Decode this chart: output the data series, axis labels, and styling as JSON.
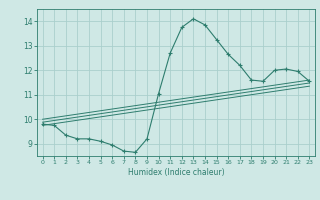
{
  "title": "",
  "xlabel": "Humidex (Indice chaleur)",
  "bg_color": "#cfe8e5",
  "line_color": "#2e7d6e",
  "grid_color": "#aacfcc",
  "xlim": [
    -0.5,
    23.5
  ],
  "ylim": [
    8.5,
    14.5
  ],
  "xticks": [
    0,
    1,
    2,
    3,
    4,
    5,
    6,
    7,
    8,
    9,
    10,
    11,
    12,
    13,
    14,
    15,
    16,
    17,
    18,
    19,
    20,
    21,
    22,
    23
  ],
  "yticks": [
    9,
    10,
    11,
    12,
    13,
    14
  ],
  "main_line": [
    [
      0,
      9.8
    ],
    [
      1,
      9.75
    ],
    [
      2,
      9.35
    ],
    [
      3,
      9.2
    ],
    [
      4,
      9.2
    ],
    [
      5,
      9.1
    ],
    [
      6,
      8.95
    ],
    [
      7,
      8.7
    ],
    [
      8,
      8.65
    ],
    [
      9,
      9.2
    ],
    [
      10,
      11.05
    ],
    [
      11,
      12.7
    ],
    [
      12,
      13.75
    ],
    [
      13,
      14.1
    ],
    [
      14,
      13.85
    ],
    [
      15,
      13.25
    ],
    [
      16,
      12.65
    ],
    [
      17,
      12.2
    ],
    [
      18,
      11.6
    ],
    [
      19,
      11.55
    ],
    [
      20,
      12.0
    ],
    [
      21,
      12.05
    ],
    [
      22,
      11.95
    ],
    [
      23,
      11.55
    ]
  ],
  "reg_line1": [
    [
      0,
      9.75
    ],
    [
      23,
      11.35
    ]
  ],
  "reg_line2": [
    [
      0,
      9.88
    ],
    [
      23,
      11.48
    ]
  ],
  "reg_line3": [
    [
      0,
      10.0
    ],
    [
      23,
      11.6
    ]
  ]
}
